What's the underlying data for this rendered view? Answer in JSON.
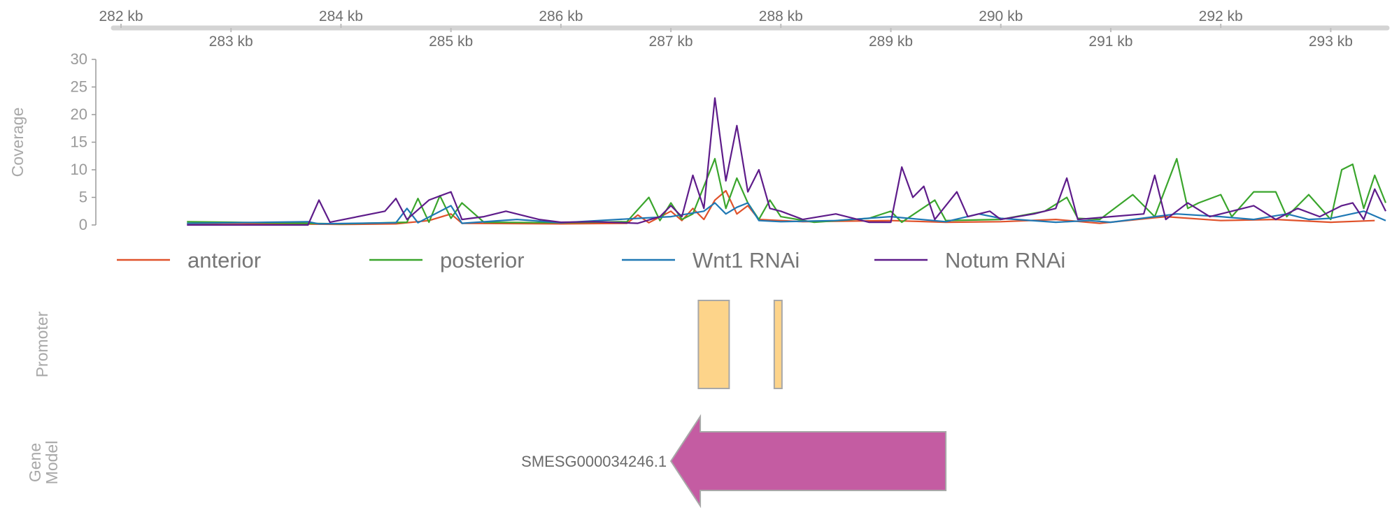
{
  "chart_data": {
    "type": "line",
    "genome_axis": {
      "range_kb": [
        282,
        293.5
      ],
      "ticks_top": [
        "282 kb",
        "284 kb",
        "286 kb",
        "288 kb",
        "290 kb",
        "292 kb"
      ],
      "ticks_bottom": [
        "283 kb",
        "285 kb",
        "287 kb",
        "289 kb",
        "291 kb",
        "293 kb"
      ],
      "color": "#d4d4d4"
    },
    "coverage": {
      "ylabel": "Coverage",
      "ylim": [
        0,
        30
      ],
      "yticks": [
        "0",
        "5",
        "10",
        "15",
        "20",
        "25",
        "30"
      ],
      "series": [
        {
          "name": "anterior",
          "color": "#e0522b",
          "points": [
            [
              282.6,
              0.2
            ],
            [
              283.0,
              0.3
            ],
            [
              284.0,
              0.1
            ],
            [
              284.5,
              0.2
            ],
            [
              284.8,
              0.8
            ],
            [
              285.0,
              2.0
            ],
            [
              285.1,
              0.3
            ],
            [
              286.0,
              0.2
            ],
            [
              286.6,
              0.3
            ],
            [
              286.7,
              1.8
            ],
            [
              286.8,
              0.4
            ],
            [
              287.0,
              2.5
            ],
            [
              287.1,
              0.8
            ],
            [
              287.2,
              3.0
            ],
            [
              287.3,
              1.0
            ],
            [
              287.4,
              4.5
            ],
            [
              287.5,
              6.2
            ],
            [
              287.6,
              2.0
            ],
            [
              287.7,
              3.5
            ],
            [
              287.8,
              1.0
            ],
            [
              288.2,
              0.6
            ],
            [
              289.0,
              0.8
            ],
            [
              289.5,
              0.5
            ],
            [
              290.0,
              0.6
            ],
            [
              290.5,
              1.0
            ],
            [
              290.9,
              0.3
            ],
            [
              291.5,
              1.5
            ],
            [
              292.0,
              0.8
            ],
            [
              292.5,
              1.0
            ],
            [
              293.0,
              0.5
            ],
            [
              293.4,
              0.8
            ]
          ]
        },
        {
          "name": "posterior",
          "color": "#3aa52c",
          "points": [
            [
              282.6,
              0.6
            ],
            [
              283.0,
              0.5
            ],
            [
              284.0,
              0.2
            ],
            [
              284.6,
              0.5
            ],
            [
              284.7,
              4.8
            ],
            [
              284.8,
              0.5
            ],
            [
              284.9,
              5.3
            ],
            [
              285.0,
              1.2
            ],
            [
              285.1,
              4.0
            ],
            [
              285.3,
              0.5
            ],
            [
              286.0,
              0.4
            ],
            [
              286.6,
              0.6
            ],
            [
              286.8,
              5.0
            ],
            [
              286.9,
              0.8
            ],
            [
              287.0,
              4.0
            ],
            [
              287.1,
              1.0
            ],
            [
              287.2,
              2.0
            ],
            [
              287.3,
              7.0
            ],
            [
              287.4,
              12.0
            ],
            [
              287.5,
              3.0
            ],
            [
              287.6,
              8.5
            ],
            [
              287.7,
              4.0
            ],
            [
              287.8,
              1.0
            ],
            [
              287.9,
              4.5
            ],
            [
              288.0,
              1.5
            ],
            [
              288.3,
              0.5
            ],
            [
              288.8,
              1.2
            ],
            [
              289.0,
              2.5
            ],
            [
              289.1,
              0.5
            ],
            [
              289.4,
              4.5
            ],
            [
              289.5,
              0.8
            ],
            [
              290.0,
              1.0
            ],
            [
              290.4,
              2.5
            ],
            [
              290.6,
              5.0
            ],
            [
              290.7,
              1.2
            ],
            [
              290.9,
              1.0
            ],
            [
              291.2,
              5.5
            ],
            [
              291.4,
              1.5
            ],
            [
              291.6,
              12.0
            ],
            [
              291.7,
              3.0
            ],
            [
              291.8,
              4.0
            ],
            [
              292.0,
              5.5
            ],
            [
              292.1,
              1.5
            ],
            [
              292.3,
              6.0
            ],
            [
              292.5,
              6.0
            ],
            [
              292.6,
              1.5
            ],
            [
              292.8,
              5.5
            ],
            [
              293.0,
              1.0
            ],
            [
              293.1,
              10.0
            ],
            [
              293.2,
              11.0
            ],
            [
              293.3,
              3.0
            ],
            [
              293.4,
              9.0
            ],
            [
              293.5,
              4.0
            ]
          ]
        },
        {
          "name": "Wnt1 RNAi",
          "color": "#1f78b4",
          "points": [
            [
              282.6,
              0.3
            ],
            [
              283.0,
              0.4
            ],
            [
              283.7,
              0.6
            ],
            [
              283.8,
              0.2
            ],
            [
              284.5,
              0.4
            ],
            [
              284.6,
              3.0
            ],
            [
              284.7,
              0.4
            ],
            [
              285.0,
              3.5
            ],
            [
              285.1,
              0.3
            ],
            [
              285.6,
              1.0
            ],
            [
              286.0,
              0.4
            ],
            [
              286.7,
              1.2
            ],
            [
              287.0,
              1.5
            ],
            [
              287.3,
              2.5
            ],
            [
              287.4,
              4.0
            ],
            [
              287.5,
              2.0
            ],
            [
              287.6,
              3.2
            ],
            [
              287.7,
              4.0
            ],
            [
              287.8,
              0.8
            ],
            [
              288.0,
              0.6
            ],
            [
              288.5,
              0.8
            ],
            [
              289.0,
              1.5
            ],
            [
              289.5,
              0.6
            ],
            [
              289.8,
              2.0
            ],
            [
              290.0,
              1.2
            ],
            [
              290.5,
              0.5
            ],
            [
              290.8,
              0.8
            ],
            [
              291.0,
              0.5
            ],
            [
              291.6,
              2.0
            ],
            [
              292.0,
              1.5
            ],
            [
              292.3,
              1.0
            ],
            [
              292.6,
              2.0
            ],
            [
              292.8,
              1.0
            ],
            [
              293.0,
              1.2
            ],
            [
              293.3,
              2.5
            ],
            [
              293.5,
              0.8
            ]
          ]
        },
        {
          "name": "Notum RNAi",
          "color": "#5e1c8a",
          "points": [
            [
              282.6,
              0.0
            ],
            [
              283.3,
              0.0
            ],
            [
              283.7,
              0.0
            ],
            [
              283.8,
              4.5
            ],
            [
              283.9,
              0.5
            ],
            [
              284.4,
              2.5
            ],
            [
              284.5,
              4.8
            ],
            [
              284.6,
              1.0
            ],
            [
              284.8,
              4.5
            ],
            [
              285.0,
              6.0
            ],
            [
              285.1,
              1.0
            ],
            [
              285.3,
              1.5
            ],
            [
              285.5,
              2.5
            ],
            [
              285.8,
              1.0
            ],
            [
              286.0,
              0.5
            ],
            [
              286.3,
              0.6
            ],
            [
              286.7,
              0.3
            ],
            [
              286.9,
              1.5
            ],
            [
              287.0,
              3.5
            ],
            [
              287.1,
              1.5
            ],
            [
              287.2,
              9.0
            ],
            [
              287.3,
              3.0
            ],
            [
              287.4,
              23.0
            ],
            [
              287.5,
              8.0
            ],
            [
              287.6,
              18.0
            ],
            [
              287.7,
              6.0
            ],
            [
              287.8,
              10.0
            ],
            [
              287.9,
              3.0
            ],
            [
              288.0,
              2.5
            ],
            [
              288.2,
              1.0
            ],
            [
              288.5,
              2.0
            ],
            [
              288.8,
              0.5
            ],
            [
              289.0,
              0.5
            ],
            [
              289.1,
              10.5
            ],
            [
              289.2,
              5.0
            ],
            [
              289.3,
              7.0
            ],
            [
              289.4,
              1.0
            ],
            [
              289.6,
              6.0
            ],
            [
              289.7,
              1.5
            ],
            [
              289.9,
              2.5
            ],
            [
              290.0,
              1.0
            ],
            [
              290.3,
              2.0
            ],
            [
              290.5,
              3.0
            ],
            [
              290.6,
              8.5
            ],
            [
              290.7,
              1.0
            ],
            [
              291.0,
              1.5
            ],
            [
              291.3,
              2.0
            ],
            [
              291.4,
              9.0
            ],
            [
              291.5,
              1.0
            ],
            [
              291.7,
              4.0
            ],
            [
              291.9,
              1.5
            ],
            [
              292.1,
              2.5
            ],
            [
              292.3,
              3.5
            ],
            [
              292.5,
              1.0
            ],
            [
              292.7,
              3.0
            ],
            [
              292.9,
              1.5
            ],
            [
              293.1,
              3.5
            ],
            [
              293.2,
              4.0
            ],
            [
              293.3,
              1.0
            ],
            [
              293.4,
              6.5
            ],
            [
              293.5,
              2.5
            ]
          ]
        }
      ],
      "legend_position": "below"
    },
    "promoter_track": {
      "ylabel": "Promoter",
      "fill": "#fdd48a",
      "stroke": "#a8a8a8",
      "regions_kb": [
        [
          287.25,
          287.53
        ],
        [
          287.94,
          288.01
        ]
      ]
    },
    "gene_model_track": {
      "ylabel": "Gene Model",
      "fill": "#c45ca2",
      "stroke": "#a8a8a8",
      "genes": [
        {
          "id": "SMESG000034246.1",
          "start_kb": 287.0,
          "end_kb": 289.5,
          "strand": "-"
        }
      ]
    }
  }
}
